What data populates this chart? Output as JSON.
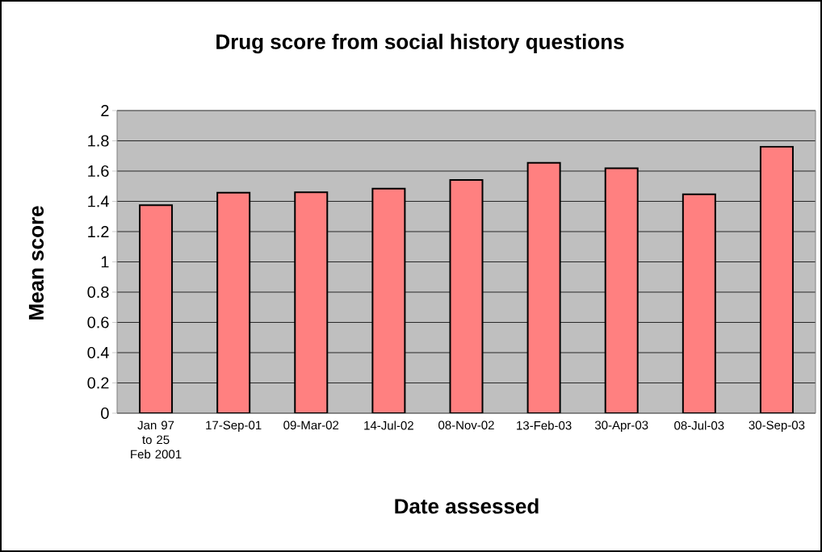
{
  "chart_data": {
    "type": "bar",
    "title": "Drug score from social history questions",
    "xlabel": "Date assessed",
    "ylabel": "Mean score",
    "categories": [
      "Jan 97 to 25 Feb 2001",
      "17-Sep-01",
      "09-Mar-02",
      "14-Jul-02",
      "08-Nov-02",
      "13-Feb-03",
      "30-Apr-03",
      "08-Jul-03",
      "30-Sep-03"
    ],
    "values": [
      1.375,
      1.457,
      1.46,
      1.484,
      1.541,
      1.655,
      1.618,
      1.446,
      1.761
    ],
    "color": "#ff8080",
    "ylim": [
      0,
      2
    ],
    "yticks": [
      0,
      0.2,
      0.4,
      0.6,
      0.8,
      1,
      1.2,
      1.4,
      1.6,
      1.8,
      2
    ],
    "grid": "y"
  }
}
